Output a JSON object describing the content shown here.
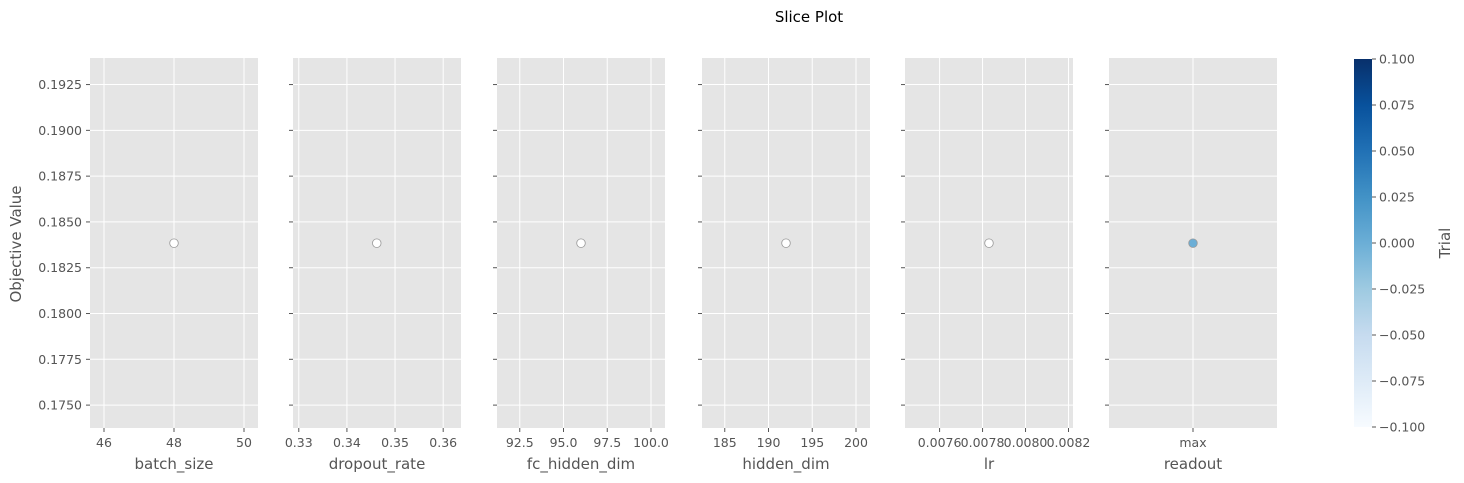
{
  "chart_data": {
    "type": "scatter",
    "title": "Slice Plot",
    "ylabel": "Objective Value",
    "ylim": [
      0.17375,
      0.19395
    ],
    "yticks": [
      0.175,
      0.1775,
      0.18,
      0.1825,
      0.185,
      0.1875,
      0.19,
      0.1925
    ],
    "ytick_labels": [
      "0.1750",
      "0.1775",
      "0.1800",
      "0.1825",
      "0.1850",
      "0.1875",
      "0.1900",
      "0.1925"
    ],
    "colorbar": {
      "label": "Trial",
      "range": [
        -0.1,
        0.1
      ],
      "ticks": [
        -0.1,
        -0.075,
        -0.05,
        -0.025,
        0.0,
        0.025,
        0.05,
        0.075,
        0.1
      ],
      "tick_labels": [
        "−0.100",
        "−0.075",
        "−0.050",
        "−0.025",
        "0.000",
        "0.025",
        "0.050",
        "0.075",
        "0.100"
      ],
      "colors": [
        "#f7fbff",
        "#deebf7",
        "#c6dbef",
        "#9ecae1",
        "#6baed6",
        "#4292c6",
        "#2171b5",
        "#08519c",
        "#08306b"
      ]
    },
    "panels": [
      {
        "xlabel": "batch_size",
        "scale": "linear",
        "xlim": [
          45.6,
          50.4
        ],
        "xticks": [
          46,
          48,
          50
        ],
        "xtick_labels": [
          "46",
          "48",
          "50"
        ],
        "points": [
          {
            "x": 48,
            "y": 0.18384,
            "trial": 0
          }
        ],
        "marker": "#ffffff"
      },
      {
        "xlabel": "dropout_rate",
        "scale": "linear",
        "xlim": [
          0.3288,
          0.3637
        ],
        "xticks": [
          0.33,
          0.34,
          0.35,
          0.36
        ],
        "xtick_labels": [
          "0.33",
          "0.34",
          "0.35",
          "0.36"
        ],
        "points": [
          {
            "x": 0.3462,
            "y": 0.18384,
            "trial": 0
          }
        ],
        "marker": "#ffffff"
      },
      {
        "xlabel": "fc_hidden_dim",
        "scale": "linear",
        "xlim": [
          91.2,
          100.8
        ],
        "xticks": [
          92.5,
          95.0,
          97.5,
          100.0
        ],
        "xtick_labels": [
          "92.5",
          "95.0",
          "97.5",
          "100.0"
        ],
        "points": [
          {
            "x": 96,
            "y": 0.18384,
            "trial": 0
          }
        ],
        "marker": "#ffffff"
      },
      {
        "xlabel": "hidden_dim",
        "scale": "linear",
        "xlim": [
          182.4,
          201.6
        ],
        "xticks": [
          185,
          190,
          195,
          200
        ],
        "xtick_labels": [
          "185",
          "190",
          "195",
          "200"
        ],
        "points": [
          {
            "x": 192,
            "y": 0.18384,
            "trial": 0
          }
        ],
        "marker": "#ffffff"
      },
      {
        "xlabel": "lr",
        "scale": "linear",
        "xlim": [
          0.007439,
          0.008221
        ],
        "xticks": [
          0.0076,
          0.0078,
          0.008,
          0.0082
        ],
        "xtick_labels": [
          "0.0076",
          "0.0078",
          "0.0080",
          "0.0082"
        ],
        "points": [
          {
            "x": 0.00783,
            "y": 0.18384,
            "trial": 0
          }
        ],
        "marker": "#ffffff"
      },
      {
        "xlabel": "readout",
        "scale": "categorical",
        "categories": [
          "max"
        ],
        "xtick_labels": [
          "max"
        ],
        "points": [
          {
            "x": "max",
            "y": 0.18384,
            "trial": 0
          }
        ],
        "marker": "#6baed6"
      }
    ]
  }
}
